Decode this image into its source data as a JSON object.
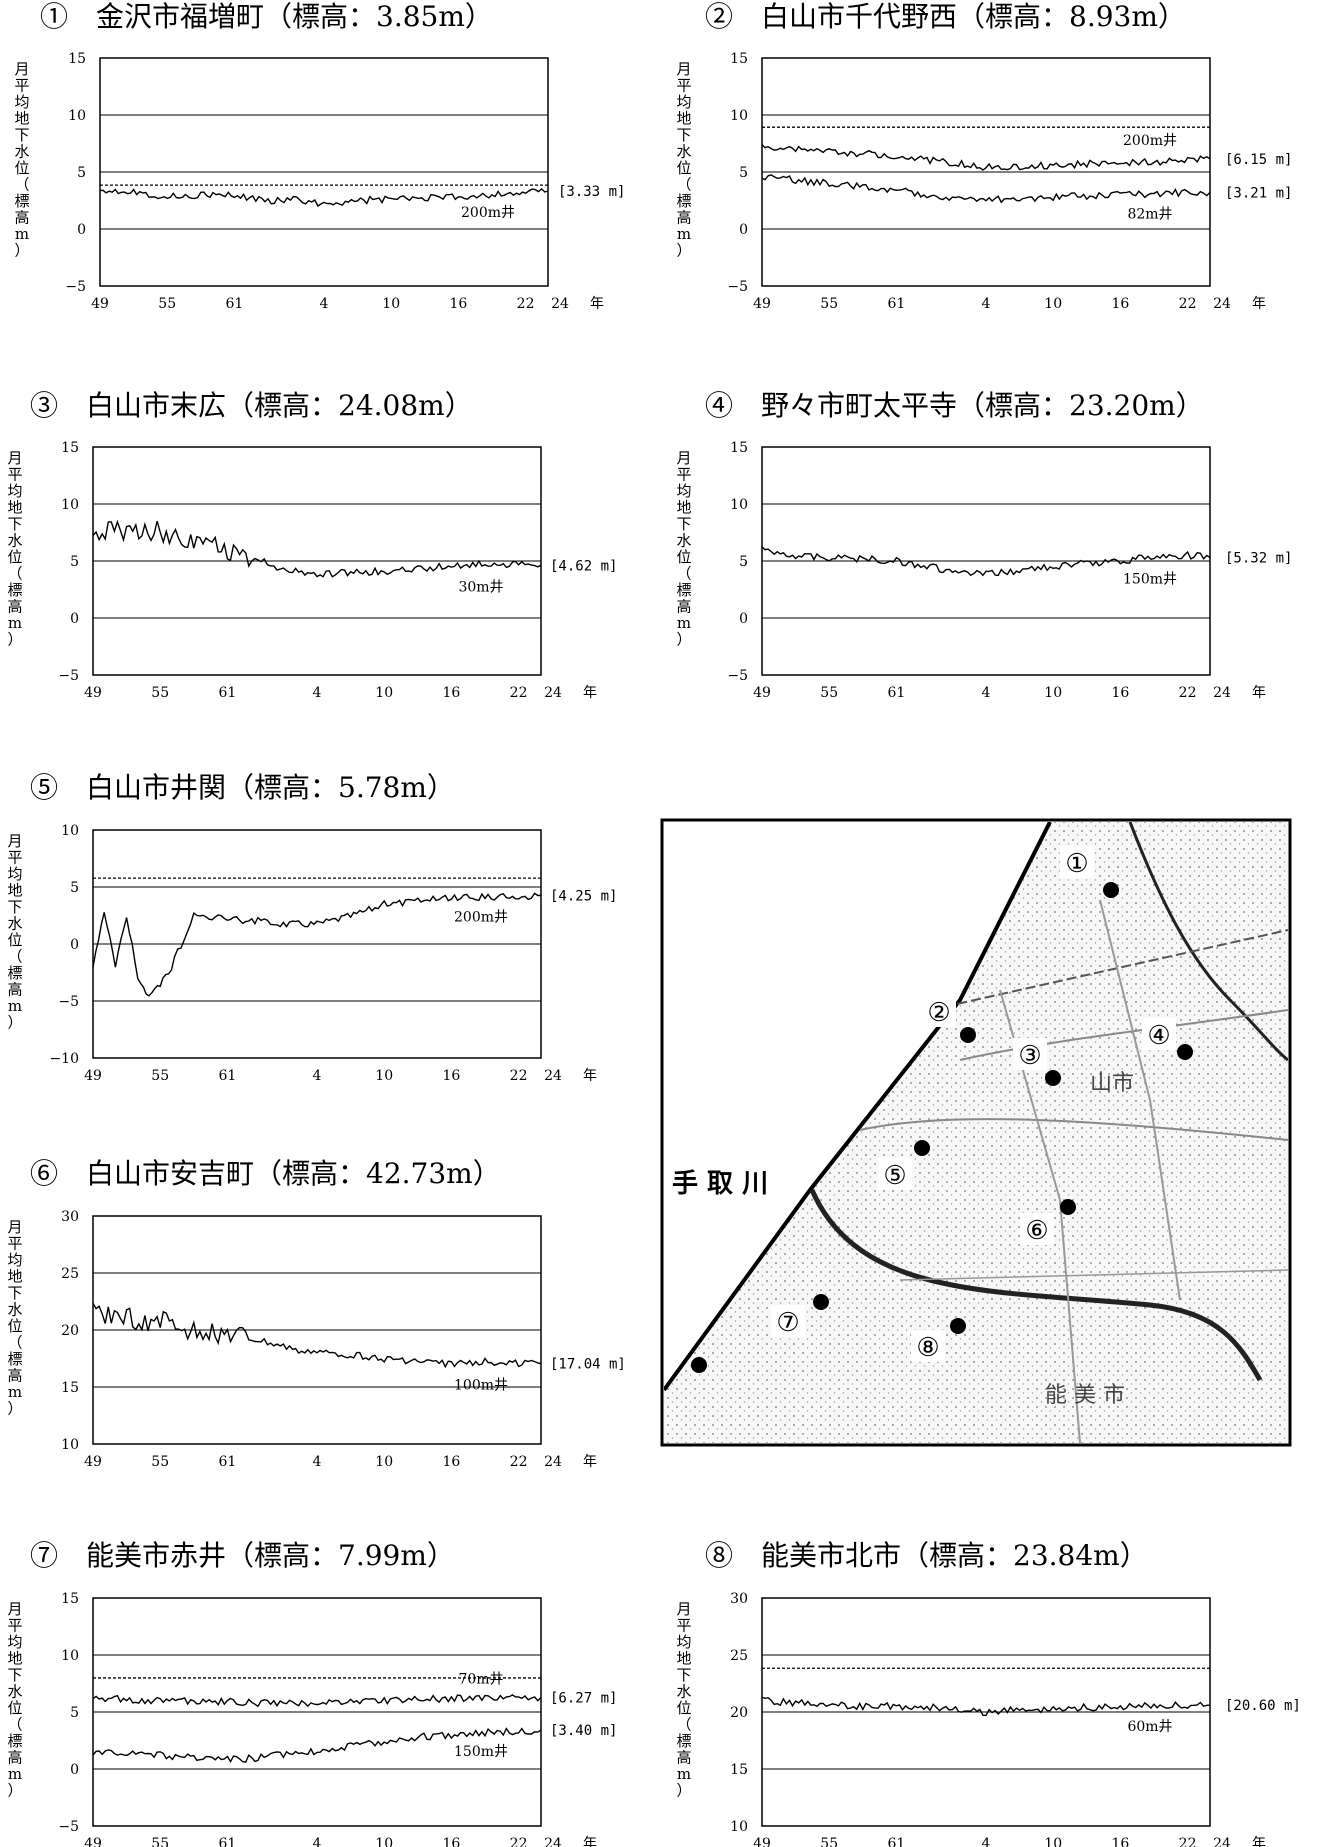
{
  "map": {
    "river_label": "手 取 川",
    "labels": [
      "①",
      "②",
      "③",
      "④",
      "⑤",
      "⑥",
      "⑦",
      "⑧"
    ],
    "city_labels": [
      "山市",
      "能 美 市"
    ]
  },
  "chart_data": [
    {
      "type": "line",
      "title": "①　金沢市福増町（標高：3.85m）",
      "ylabel": "月平均地下水位（標高m）",
      "ylim": [
        -5,
        15
      ],
      "yticks": [
        -5,
        0,
        5,
        10,
        15
      ],
      "x_ticklabels": [
        "49",
        "55",
        "61",
        "4",
        "10",
        "16",
        "22",
        "24"
      ],
      "x_unit": "年",
      "ground_elevation": 3.85,
      "series": [
        {
          "name": "200m井",
          "latest": "[3.33 m]",
          "x": [
            "49",
            "52",
            "55",
            "58",
            "61",
            "64",
            "1",
            "4",
            "7",
            "10",
            "13",
            "16",
            "19",
            "22",
            "24"
          ],
          "values": [
            3.5,
            3.3,
            2.8,
            3.0,
            2.9,
            2.5,
            2.6,
            2.2,
            2.5,
            2.6,
            2.7,
            2.8,
            3.0,
            3.2,
            3.33
          ]
        }
      ]
    },
    {
      "type": "line",
      "title": "②　白山市千代野西（標高：8.93m）",
      "ylabel": "月平均地下水位（標高m）",
      "ylim": [
        -5,
        15
      ],
      "yticks": [
        -5,
        0,
        5,
        10,
        15
      ],
      "x_ticklabels": [
        "49",
        "55",
        "61",
        "4",
        "10",
        "16",
        "22",
        "24"
      ],
      "x_unit": "年",
      "ground_elevation": 8.93,
      "series": [
        {
          "name": "200m井",
          "latest": "[6.15 m]",
          "x": [
            "49",
            "52",
            "55",
            "58",
            "61",
            "64",
            "1",
            "4",
            "7",
            "10",
            "13",
            "16",
            "19",
            "22",
            "24"
          ],
          "values": [
            7.2,
            7.0,
            6.8,
            6.6,
            6.4,
            6.0,
            5.8,
            5.4,
            5.5,
            5.6,
            5.7,
            5.8,
            5.9,
            6.0,
            6.15
          ]
        },
        {
          "name": "82m井",
          "latest": "[3.21 m]",
          "x": [
            "49",
            "52",
            "55",
            "58",
            "61",
            "64",
            "1",
            "4",
            "7",
            "10",
            "13",
            "16",
            "19",
            "22",
            "24"
          ],
          "values": [
            4.5,
            4.3,
            4.0,
            3.7,
            3.4,
            3.0,
            2.8,
            2.5,
            2.7,
            2.8,
            2.9,
            3.0,
            3.1,
            3.2,
            3.21
          ]
        }
      ]
    },
    {
      "type": "line",
      "title": "③　白山市末広（標高：24.08m）",
      "ylabel": "月平均地下水位（標高m）",
      "ylim": [
        -5,
        15
      ],
      "yticks": [
        -5,
        0,
        5,
        10,
        15
      ],
      "x_ticklabels": [
        "49",
        "55",
        "61",
        "4",
        "10",
        "16",
        "22",
        "24"
      ],
      "x_unit": "年",
      "ground_elevation": 24.08,
      "series": [
        {
          "name": "30m井",
          "latest": "[4.62 m]",
          "x": [
            "49",
            "52",
            "55",
            "58",
            "61",
            "64",
            "1",
            "4",
            "7",
            "10",
            "13",
            "16",
            "19",
            "22",
            "24"
          ],
          "values": [
            7.5,
            7.8,
            7.6,
            7.0,
            6.0,
            5.0,
            4.2,
            3.8,
            4.0,
            4.1,
            4.3,
            4.6,
            4.8,
            4.7,
            4.62
          ]
        }
      ]
    },
    {
      "type": "line",
      "title": "④　野々市町太平寺（標高：23.20m）",
      "ylabel": "月平均地下水位（標高m）",
      "ylim": [
        -5,
        15
      ],
      "yticks": [
        -5,
        0,
        5,
        10,
        15
      ],
      "x_ticklabels": [
        "49",
        "55",
        "61",
        "4",
        "10",
        "16",
        "22",
        "24"
      ],
      "x_unit": "年",
      "ground_elevation": 23.2,
      "series": [
        {
          "name": "150m井",
          "latest": "[5.32 m]",
          "x": [
            "49",
            "52",
            "55",
            "58",
            "61",
            "64",
            "1",
            "4",
            "7",
            "10",
            "13",
            "16",
            "19",
            "22",
            "24"
          ],
          "values": [
            6.0,
            5.5,
            5.3,
            5.2,
            5.0,
            4.5,
            4.0,
            3.8,
            4.2,
            4.5,
            4.8,
            5.0,
            5.4,
            5.5,
            5.32
          ]
        }
      ]
    },
    {
      "type": "line",
      "title": "⑤　白山市井関（標高：5.78m）",
      "ylabel": "月平均地下水位（標高m）",
      "ylim": [
        -10,
        10
      ],
      "yticks": [
        -10,
        -5,
        0,
        5,
        10
      ],
      "x_ticklabels": [
        "49",
        "55",
        "61",
        "4",
        "10",
        "16",
        "22",
        "24"
      ],
      "x_unit": "年",
      "ground_elevation": 5.78,
      "series": [
        {
          "name": "200m井",
          "latest": "[4.25 m]",
          "x": [
            "49",
            "50",
            "51",
            "52",
            "53",
            "54",
            "55",
            "56",
            "58",
            "61",
            "64",
            "1",
            "4",
            "7",
            "10",
            "13",
            "16",
            "19",
            "22",
            "24"
          ],
          "values": [
            -2.0,
            3.0,
            -2.0,
            2.5,
            -3.0,
            -4.5,
            -3.5,
            -2.0,
            2.5,
            2.2,
            2.0,
            1.8,
            1.8,
            2.5,
            3.5,
            3.8,
            4.0,
            4.1,
            4.2,
            4.25
          ]
        }
      ]
    },
    {
      "type": "line",
      "title": "⑥　白山市安吉町（標高：42.73m）",
      "ylabel": "月平均地下水位（標高m）",
      "ylim": [
        10,
        30
      ],
      "yticks": [
        10,
        15,
        20,
        25,
        30
      ],
      "x_ticklabels": [
        "49",
        "55",
        "61",
        "4",
        "10",
        "16",
        "22",
        "24"
      ],
      "x_unit": "年",
      "ground_elevation": 42.73,
      "series": [
        {
          "name": "100m井",
          "latest": "[17.04 m]",
          "x": [
            "49",
            "52",
            "55",
            "58",
            "61",
            "64",
            "1",
            "4",
            "7",
            "10",
            "13",
            "16",
            "19",
            "22",
            "24"
          ],
          "values": [
            21.5,
            21.0,
            20.8,
            20.0,
            19.5,
            19.0,
            18.5,
            18.0,
            17.8,
            17.5,
            17.2,
            17.0,
            17.2,
            17.1,
            17.04
          ]
        }
      ]
    },
    {
      "type": "line",
      "title": "⑦　能美市赤井（標高：7.99m）",
      "ylabel": "月平均地下水位（標高m）",
      "ylim": [
        -5,
        15
      ],
      "yticks": [
        -5,
        0,
        5,
        10,
        15
      ],
      "x_ticklabels": [
        "49",
        "55",
        "61",
        "4",
        "10",
        "16",
        "22",
        "24"
      ],
      "x_unit": "年",
      "ground_elevation": 7.99,
      "series": [
        {
          "name": "70m井",
          "latest": "[6.27 m]",
          "x": [
            "49",
            "52",
            "55",
            "58",
            "61",
            "64",
            "1",
            "4",
            "7",
            "10",
            "13",
            "16",
            "19",
            "22",
            "24"
          ],
          "values": [
            6.2,
            6.1,
            6.0,
            6.0,
            5.9,
            5.8,
            5.7,
            5.8,
            5.9,
            6.0,
            6.1,
            6.2,
            6.2,
            6.3,
            6.27
          ]
        },
        {
          "name": "150m井",
          "latest": "[3.40 m]",
          "x": [
            "49",
            "52",
            "55",
            "58",
            "61",
            "64",
            "1",
            "4",
            "7",
            "10",
            "13",
            "16",
            "19",
            "22",
            "24"
          ],
          "values": [
            1.5,
            1.4,
            1.2,
            1.0,
            0.8,
            1.0,
            1.3,
            1.6,
            2.0,
            2.4,
            2.8,
            3.0,
            3.2,
            3.3,
            3.4
          ]
        }
      ]
    },
    {
      "type": "line",
      "title": "⑧　能美市北市（標高：23.84m）",
      "ylabel": "月平均地下水位（標高m）",
      "ylim": [
        10,
        30
      ],
      "yticks": [
        10,
        15,
        20,
        25,
        30
      ],
      "x_ticklabels": [
        "49",
        "55",
        "61",
        "4",
        "10",
        "16",
        "22",
        "24"
      ],
      "x_unit": "年",
      "ground_elevation": 23.84,
      "series": [
        {
          "name": "60m井",
          "latest": "[20.60 m]",
          "x": [
            "49",
            "52",
            "55",
            "58",
            "61",
            "64",
            "1",
            "4",
            "7",
            "10",
            "13",
            "16",
            "19",
            "22",
            "24"
          ],
          "values": [
            21.0,
            20.8,
            20.7,
            20.5,
            20.5,
            20.4,
            20.3,
            20.0,
            20.2,
            20.3,
            20.4,
            20.5,
            20.5,
            20.6,
            20.6
          ]
        }
      ]
    }
  ]
}
